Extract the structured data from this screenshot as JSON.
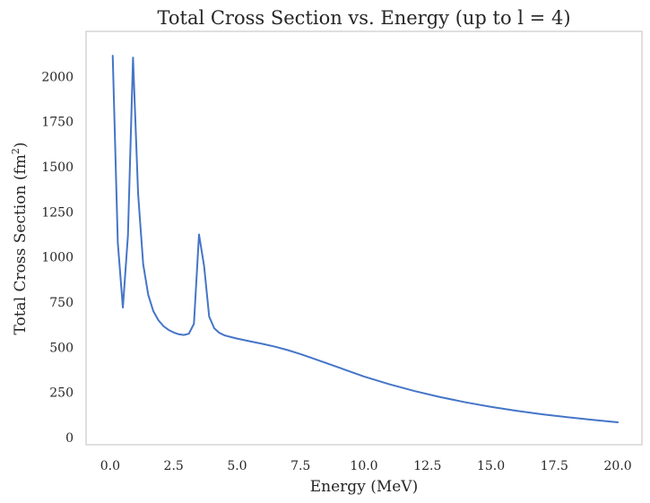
{
  "chart_data": {
    "type": "line",
    "title": "Total Cross Section vs. Energy (up to l = 4)",
    "xlabel": "Energy (MeV)",
    "ylabel_main": "Total Cross Section (fm",
    "ylabel_sup": "2",
    "ylabel_close": ")",
    "xlim": [
      -0.95,
      20.95
    ],
    "ylim": [
      -40,
      2250
    ],
    "xticks": [
      0.0,
      2.5,
      5.0,
      7.5,
      10.0,
      12.5,
      15.0,
      17.5,
      20.0
    ],
    "xtick_labels": [
      "0.0",
      "2.5",
      "5.0",
      "7.5",
      "10.0",
      "12.5",
      "15.0",
      "17.5",
      "20.0"
    ],
    "yticks": [
      0,
      250,
      500,
      750,
      1000,
      1250,
      1500,
      1750,
      2000
    ],
    "ytick_labels": [
      "0",
      "250",
      "500",
      "750",
      "1000",
      "1250",
      "1500",
      "1750",
      "2000"
    ],
    "grid": false,
    "line_color": "#4575c7",
    "frame_color": "#cccccc",
    "series": [
      {
        "x": [
          0.1,
          0.3,
          0.5,
          0.7,
          0.9,
          1.1,
          1.3,
          1.5,
          1.7,
          1.9,
          2.1,
          2.3,
          2.5,
          2.7,
          2.9,
          3.1,
          3.3,
          3.5,
          3.7,
          3.9,
          4.1,
          4.3,
          4.5,
          4.8,
          5.0,
          5.5,
          6.0,
          6.5,
          7.0,
          7.5,
          8.0,
          9.0,
          10.0,
          11.0,
          12.0,
          13.0,
          14.0,
          15.0,
          16.0,
          17.0,
          18.0,
          19.0,
          20.0
        ],
        "y": [
          2115,
          1080,
          720,
          1120,
          2105,
          1350,
          960,
          790,
          700,
          650,
          617,
          596,
          582,
          572,
          568,
          575,
          630,
          1125,
          950,
          670,
          605,
          580,
          566,
          555,
          548,
          533,
          519,
          503,
          484,
          462,
          438,
          388,
          338,
          295,
          257,
          224,
          195,
          170,
          148,
          129,
          113,
          98,
          84
        ]
      }
    ]
  }
}
